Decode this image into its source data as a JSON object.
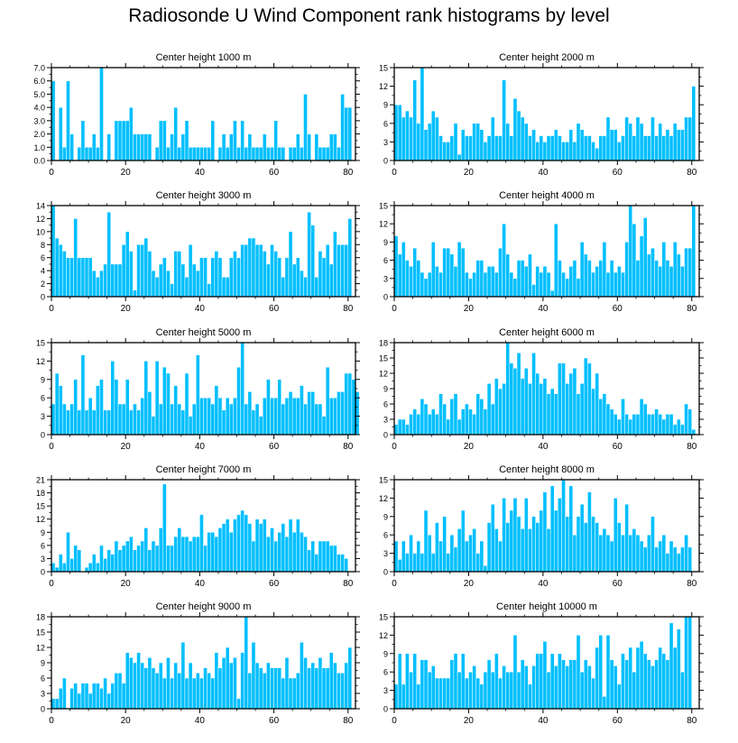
{
  "title": "Radiosonde U Wind Component rank histograms by level",
  "colors": {
    "bar": "#00bfff",
    "bar_edge": "#ffffff",
    "axis": "#000000"
  },
  "chart_data": [
    {
      "type": "bar",
      "title": "Center height 1000 m",
      "xlim": [
        0,
        82
      ],
      "xticks": [
        0,
        20,
        40,
        60,
        80
      ],
      "ylim": [
        0,
        7
      ],
      "yticks": [
        0,
        1,
        2,
        3,
        4,
        5,
        6,
        7
      ],
      "ytick_labels": [
        "0.0",
        "1.0",
        "2.0",
        "3.0",
        "4.0",
        "5.0",
        "6.0",
        "7.0"
      ],
      "values": [
        6,
        0,
        4,
        1,
        6,
        2,
        0,
        1,
        3,
        1,
        1,
        2,
        1,
        7,
        0,
        2,
        0,
        3,
        3,
        3,
        3,
        4,
        2,
        2,
        2,
        2,
        2,
        0,
        1,
        3,
        3,
        1,
        2,
        4,
        1,
        2,
        3,
        1,
        1,
        1,
        1,
        1,
        1,
        3,
        0,
        1,
        2,
        1,
        2,
        3,
        1,
        3,
        1,
        2,
        1,
        1,
        1,
        2,
        1,
        1,
        3,
        1,
        1,
        0,
        1,
        1,
        2,
        1,
        5,
        2,
        0,
        2,
        1,
        1,
        1,
        2,
        2,
        1,
        5,
        4,
        4
      ]
    },
    {
      "type": "bar",
      "title": "Center height 2000 m",
      "xlim": [
        0,
        82
      ],
      "xticks": [
        0,
        20,
        40,
        60,
        80
      ],
      "ylim": [
        0,
        15
      ],
      "yticks": [
        0,
        3,
        6,
        9,
        12,
        15
      ],
      "ytick_labels": [
        "0",
        "3",
        "6",
        "9",
        "12",
        "15"
      ],
      "values": [
        9,
        9,
        7,
        8,
        7,
        13,
        6,
        15,
        5,
        6,
        8,
        7,
        4,
        3,
        3,
        4,
        6,
        1,
        5,
        4,
        4,
        6,
        6,
        5,
        3,
        4,
        7,
        4,
        4,
        13,
        6,
        4,
        10,
        8,
        7,
        6,
        4,
        5,
        3,
        4,
        3,
        4,
        4,
        5,
        4,
        3,
        3,
        5,
        3,
        6,
        5,
        4,
        4,
        3,
        2,
        4,
        4,
        7,
        5,
        5,
        3,
        4,
        7,
        6,
        4,
        7,
        6,
        4,
        4,
        7,
        4,
        6,
        4,
        5,
        4,
        6,
        5,
        5,
        7,
        7,
        12
      ]
    },
    {
      "type": "bar",
      "title": "Center height 3000 m",
      "xlim": [
        0,
        82
      ],
      "xticks": [
        0,
        20,
        40,
        60,
        80
      ],
      "ylim": [
        0,
        14
      ],
      "yticks": [
        0,
        2,
        4,
        6,
        8,
        10,
        12,
        14
      ],
      "ytick_labels": [
        "0",
        "2",
        "4",
        "6",
        "8",
        "10",
        "12",
        "14"
      ],
      "values": [
        14,
        9,
        8,
        7,
        6,
        6,
        12,
        6,
        6,
        6,
        6,
        4,
        3,
        4,
        5,
        13,
        5,
        5,
        5,
        8,
        10,
        7,
        1,
        8,
        8,
        9,
        7,
        4,
        3,
        5,
        6,
        4,
        2,
        7,
        7,
        5,
        3,
        8,
        5,
        4,
        6,
        6,
        2,
        6,
        7,
        6,
        3,
        3,
        6,
        7,
        6,
        8,
        8,
        9,
        9,
        8,
        8,
        7,
        5,
        8,
        7,
        6,
        3,
        6,
        10,
        5,
        6,
        4,
        3,
        13,
        11,
        3,
        7,
        6,
        8,
        5,
        10,
        8,
        8,
        8,
        12
      ]
    },
    {
      "type": "bar",
      "title": "Center height 4000 m",
      "xlim": [
        0,
        82
      ],
      "xticks": [
        0,
        20,
        40,
        60,
        80
      ],
      "ylim": [
        0,
        15
      ],
      "yticks": [
        0,
        3,
        6,
        9,
        12,
        15
      ],
      "ytick_labels": [
        "0",
        "3",
        "6",
        "9",
        "12",
        "15"
      ],
      "values": [
        10,
        7,
        9,
        6,
        5,
        8,
        6,
        4,
        3,
        4,
        9,
        5,
        4,
        8,
        8,
        7,
        5,
        9,
        8,
        4,
        3,
        4,
        6,
        6,
        4,
        5,
        5,
        4,
        8,
        12,
        7,
        4,
        3,
        6,
        6,
        5,
        7,
        2,
        5,
        4,
        5,
        4,
        1,
        12,
        6,
        4,
        3,
        5,
        6,
        3,
        9,
        7,
        6,
        4,
        5,
        6,
        9,
        4,
        6,
        4,
        5,
        4,
        9,
        15,
        12,
        6,
        10,
        13,
        7,
        8,
        6,
        5,
        9,
        6,
        5,
        9,
        7,
        5,
        8,
        8,
        15
      ]
    },
    {
      "type": "bar",
      "title": "Center height 5000 m",
      "xlim": [
        0,
        82
      ],
      "xticks": [
        0,
        20,
        40,
        60,
        80
      ],
      "ylim": [
        0,
        15
      ],
      "yticks": [
        0,
        3,
        6,
        9,
        12,
        15
      ],
      "ytick_labels": [
        "0",
        "3",
        "6",
        "9",
        "12",
        "15"
      ],
      "values": [
        5,
        10,
        8,
        5,
        4,
        5,
        9,
        4,
        13,
        4,
        6,
        4,
        8,
        9,
        4,
        4,
        12,
        9,
        5,
        5,
        9,
        4,
        5,
        4,
        6,
        12,
        7,
        3,
        12,
        5,
        11,
        10,
        5,
        8,
        5,
        4,
        10,
        3,
        5,
        13,
        6,
        6,
        6,
        5,
        8,
        6,
        4,
        6,
        5,
        6,
        11,
        15,
        5,
        7,
        4,
        5,
        3,
        6,
        9,
        6,
        6,
        9,
        5,
        6,
        7,
        6,
        6,
        8,
        5,
        7,
        7,
        5,
        5,
        3,
        11,
        6,
        6,
        7,
        7,
        10,
        10,
        9,
        7
      ]
    },
    {
      "type": "bar",
      "title": "Center height 6000 m",
      "xlim": [
        0,
        82
      ],
      "xticks": [
        0,
        20,
        40,
        60,
        80
      ],
      "ylim": [
        0,
        18
      ],
      "yticks": [
        0,
        3,
        6,
        9,
        12,
        15,
        18
      ],
      "ytick_labels": [
        "0",
        "3",
        "6",
        "9",
        "12",
        "15",
        "18"
      ],
      "values": [
        2,
        3,
        3,
        2,
        4,
        5,
        4,
        7,
        6,
        4,
        5,
        4,
        8,
        6,
        3,
        7,
        8,
        3,
        5,
        6,
        5,
        4,
        8,
        7,
        5,
        10,
        6,
        11,
        9,
        10,
        18,
        14,
        13,
        16,
        11,
        13,
        10,
        16,
        12,
        10,
        11,
        8,
        9,
        8,
        14,
        14,
        10,
        12,
        13,
        8,
        10,
        15,
        14,
        9,
        12,
        7,
        8,
        6,
        5,
        4,
        3,
        7,
        4,
        3,
        4,
        4,
        7,
        6,
        4,
        4,
        5,
        4,
        3,
        4,
        4,
        2,
        3,
        2,
        6,
        5,
        1
      ]
    },
    {
      "type": "bar",
      "title": "Center height 7000 m",
      "xlim": [
        0,
        82
      ],
      "xticks": [
        0,
        20,
        40,
        60,
        80
      ],
      "ylim": [
        0,
        21
      ],
      "yticks": [
        0,
        3,
        6,
        9,
        12,
        15,
        18,
        21
      ],
      "ytick_labels": [
        "0",
        "3",
        "6",
        "9",
        "12",
        "15",
        "18",
        "21"
      ],
      "values": [
        2,
        1,
        4,
        2,
        9,
        3,
        6,
        5,
        0,
        1,
        2,
        4,
        2,
        6,
        3,
        5,
        4,
        7,
        5,
        6,
        7,
        8,
        5,
        6,
        7,
        10,
        5,
        7,
        6,
        10,
        20,
        6,
        6,
        8,
        10,
        8,
        8,
        7,
        8,
        8,
        13,
        6,
        9,
        9,
        8,
        10,
        11,
        12,
        9,
        12,
        13,
        14,
        13,
        11,
        7,
        12,
        11,
        12,
        8,
        10,
        7,
        9,
        11,
        8,
        12,
        9,
        12,
        9,
        8,
        5,
        7,
        4,
        7,
        7,
        7,
        6,
        6,
        4,
        4,
        3
      ]
    },
    {
      "type": "bar",
      "title": "Center height 8000 m",
      "xlim": [
        0,
        82
      ],
      "xticks": [
        0,
        20,
        40,
        60,
        80
      ],
      "ylim": [
        0,
        15
      ],
      "yticks": [
        0,
        3,
        6,
        9,
        12,
        15
      ],
      "ytick_labels": [
        "0",
        "3",
        "6",
        "9",
        "12",
        "15"
      ],
      "values": [
        5,
        2,
        5,
        3,
        6,
        3,
        5,
        3,
        10,
        6,
        3,
        8,
        5,
        9,
        3,
        6,
        4,
        7,
        10,
        5,
        6,
        7,
        3,
        5,
        1,
        8,
        11,
        7,
        5,
        12,
        8,
        10,
        12,
        9,
        7,
        12,
        7,
        9,
        8,
        10,
        13,
        7,
        14,
        10,
        12,
        15,
        9,
        14,
        6,
        9,
        11,
        8,
        13,
        9,
        8,
        6,
        7,
        6,
        5,
        12,
        8,
        6,
        11,
        6,
        7,
        6,
        5,
        4,
        6,
        9,
        4,
        5,
        6,
        3,
        5,
        4,
        3,
        4,
        6,
        4
      ]
    },
    {
      "type": "bar",
      "title": "Center height 9000 m",
      "xlim": [
        0,
        82
      ],
      "xticks": [
        0,
        20,
        40,
        60,
        80
      ],
      "ylim": [
        0,
        18
      ],
      "yticks": [
        0,
        3,
        6,
        9,
        12,
        15,
        18
      ],
      "ytick_labels": [
        "0",
        "3",
        "6",
        "9",
        "12",
        "15",
        "18"
      ],
      "values": [
        2,
        2,
        4,
        6,
        0,
        4,
        5,
        3,
        5,
        5,
        3,
        5,
        5,
        4,
        6,
        3,
        5,
        7,
        7,
        5,
        11,
        10,
        9,
        11,
        9,
        8,
        10,
        8,
        7,
        9,
        6,
        10,
        6,
        9,
        7,
        13,
        6,
        9,
        6,
        7,
        6,
        8,
        7,
        6,
        11,
        8,
        10,
        12,
        9,
        10,
        2,
        11,
        18,
        7,
        13,
        9,
        8,
        7,
        9,
        8,
        8,
        8,
        6,
        10,
        6,
        6,
        7,
        13,
        10,
        8,
        9,
        8,
        10,
        8,
        8,
        11,
        9,
        7,
        7,
        9,
        12
      ]
    },
    {
      "type": "bar",
      "title": "Center height 10000 m",
      "xlim": [
        0,
        82
      ],
      "xticks": [
        0,
        20,
        40,
        60,
        80
      ],
      "ylim": [
        0,
        15
      ],
      "yticks": [
        0,
        3,
        6,
        9,
        12,
        15
      ],
      "ytick_labels": [
        "0",
        "3",
        "6",
        "9",
        "12",
        "15"
      ],
      "values": [
        4,
        9,
        4,
        9,
        6,
        9,
        4,
        8,
        8,
        6,
        7,
        5,
        5,
        5,
        5,
        8,
        9,
        6,
        9,
        5,
        6,
        7,
        5,
        4,
        6,
        8,
        6,
        9,
        5,
        7,
        6,
        6,
        12,
        6,
        8,
        7,
        4,
        7,
        9,
        9,
        11,
        6,
        9,
        7,
        9,
        8,
        7,
        8,
        8,
        12,
        6,
        8,
        7,
        5,
        10,
        12,
        2,
        12,
        8,
        7,
        4,
        9,
        8,
        10,
        6,
        10,
        11,
        9,
        8,
        7,
        8,
        10,
        9,
        8,
        14,
        10,
        13,
        6,
        15,
        15
      ]
    }
  ]
}
